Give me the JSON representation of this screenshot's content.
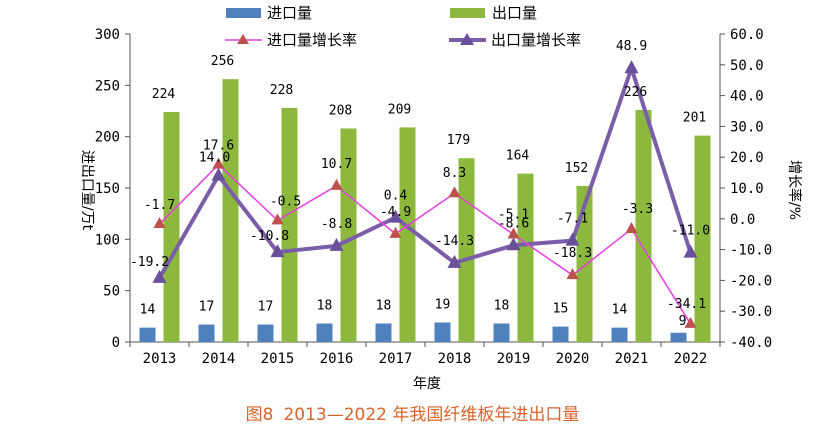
{
  "caption": {
    "fig": "图8",
    "text": "2013—2022 年我国纤维板年进出口量"
  },
  "chart_data": {
    "type": "bar",
    "categories": [
      "2013",
      "2014",
      "2015",
      "2016",
      "2017",
      "2018",
      "2019",
      "2020",
      "2021",
      "2022"
    ],
    "xlabel": "年度",
    "ylabel": "进出口量/万t",
    "y2label": "增长率/%",
    "ylim": [
      0,
      300
    ],
    "y2lim": [
      -40,
      60
    ],
    "yticks": [
      "0",
      "50",
      "100",
      "150",
      "200",
      "250",
      "300"
    ],
    "y2ticks": [
      "-40.0",
      "-30.0",
      "-20.0",
      "-10.0",
      "0.0",
      "10.0",
      "20.0",
      "30.0",
      "40.0",
      "50.0",
      "60.0"
    ],
    "series": [
      {
        "name": "进口量",
        "type": "bar",
        "color": "#4f81bd",
        "axis": "left",
        "values": [
          14,
          17,
          17,
          18,
          18,
          19,
          18,
          15,
          14,
          9
        ],
        "labels": [
          "14",
          "17",
          "17",
          "18",
          "18",
          "19",
          "18",
          "15",
          "14",
          "9"
        ]
      },
      {
        "name": "出口量",
        "type": "bar",
        "color": "#8cb83e",
        "axis": "left",
        "values": [
          224,
          256,
          228,
          208,
          209,
          179,
          164,
          152,
          226,
          201
        ],
        "labels": [
          "224",
          "256",
          "228",
          "208",
          "209",
          "179",
          "164",
          "152",
          "226",
          "201"
        ]
      },
      {
        "name": "进口量增长率",
        "type": "line",
        "color": "#e83ee0",
        "marker": "triangle",
        "markerColor": "#c0504d",
        "axis": "right",
        "values": [
          -1.7,
          17.6,
          -0.5,
          10.7,
          -4.9,
          8.3,
          -5.1,
          -18.3,
          -3.3,
          -34.1
        ],
        "labels": [
          "-1.7",
          "17.6",
          "-0.5",
          "10.7",
          "-4.9",
          "8.3",
          "-5.1",
          "-18.3",
          "-3.3",
          "-34.1"
        ]
      },
      {
        "name": "出口量增长率",
        "type": "line",
        "color": "#7b5ea7",
        "marker": "triangle",
        "markerColor": "#6a4f9a",
        "axis": "right",
        "values": [
          -19.2,
          14.0,
          -10.8,
          -8.8,
          0.4,
          -14.3,
          -8.6,
          -7.1,
          48.9,
          -11.0
        ],
        "labels": [
          "-19.2",
          "14.0",
          "-10.8",
          "-8.8",
          "0.4",
          "-14.3",
          "-8.6",
          "-7.1",
          "48.9",
          "-11.0"
        ]
      }
    ],
    "grid": false,
    "legend": "top"
  }
}
